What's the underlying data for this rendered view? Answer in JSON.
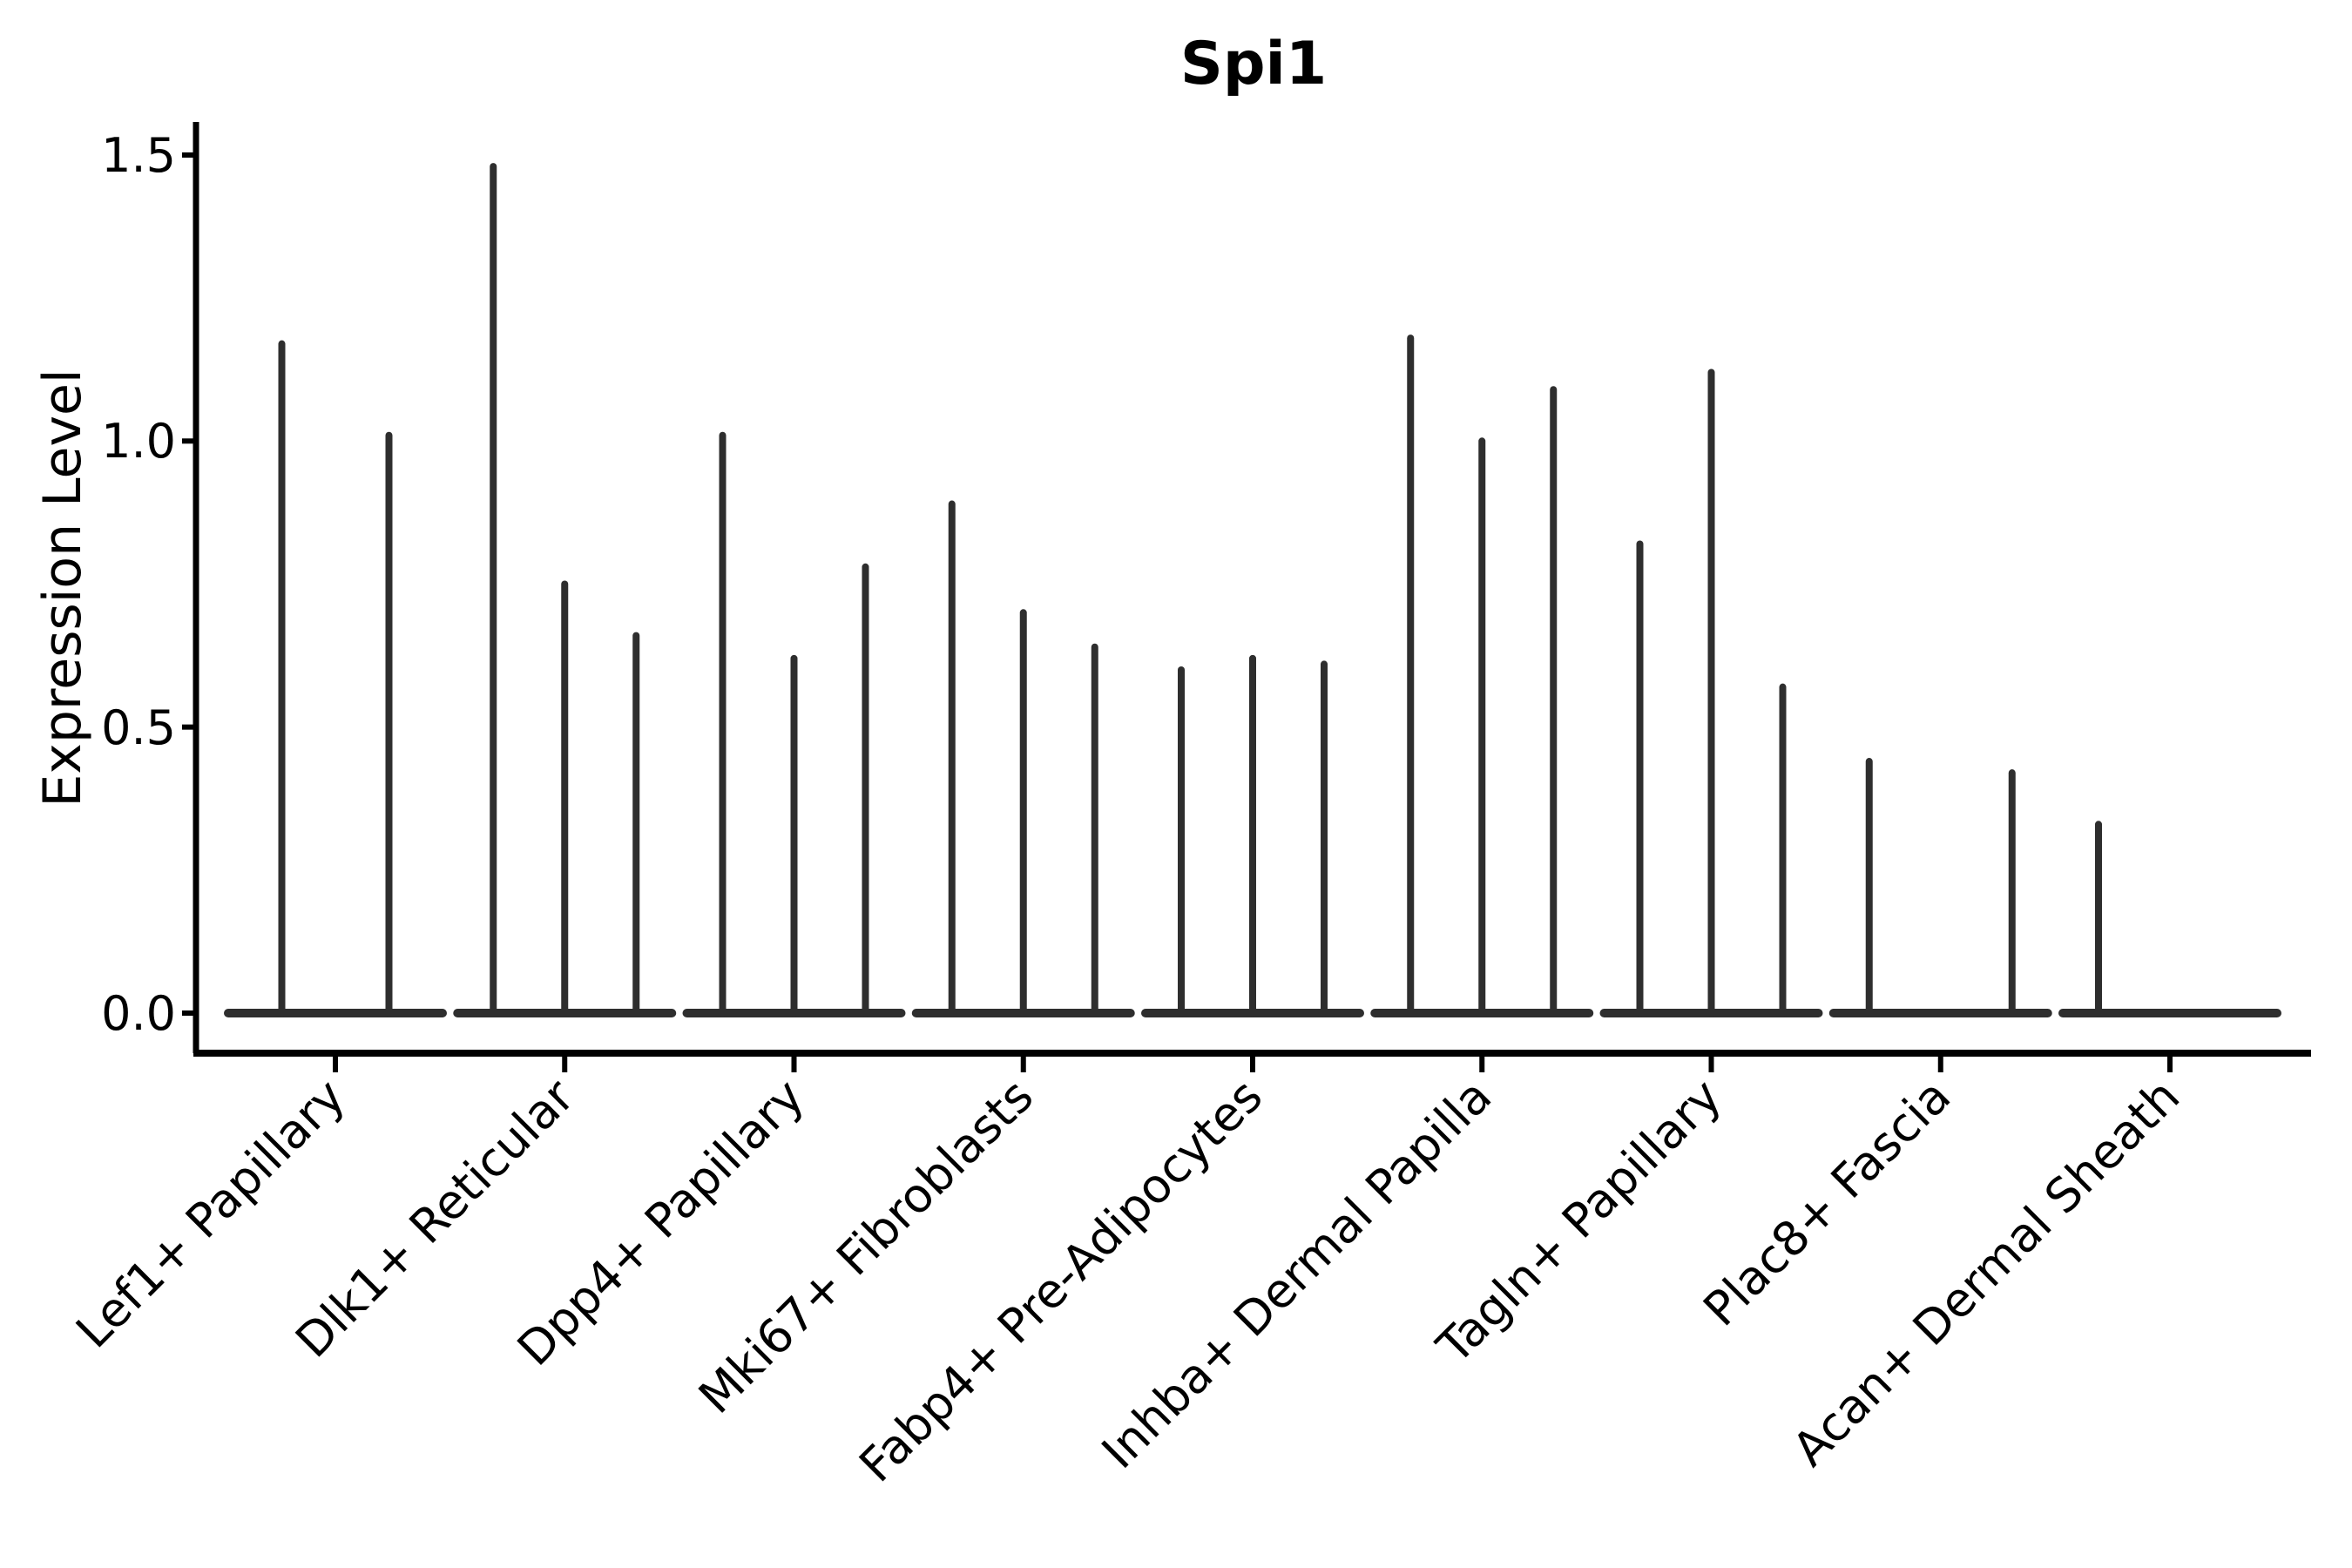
{
  "chart_data": {
    "type": "violin",
    "title": "Spi1",
    "xlabel": "",
    "ylabel": "Expression Level",
    "categories": [
      "Lef1+ Papillary",
      "Dlk1+ Reticular",
      "Dpp4+ Papillary",
      "Mki67+ Fibroblasts",
      "Fabp4+ Pre-Adipocytes",
      "Inhba+ Dermal Papilla",
      "Tagln+ Papillary",
      "Plac8+ Fascia",
      "Acan+ Dermal Sheath"
    ],
    "violins_per_category": [
      2,
      3,
      3,
      3,
      3,
      3,
      3,
      3,
      3
    ],
    "peak_expression_per_category": [
      [
        1.17,
        1.01
      ],
      [
        1.48,
        0.75,
        0.66
      ],
      [
        1.01,
        0.62,
        0.78
      ],
      [
        0.89,
        0.7,
        0.64
      ],
      [
        0.6,
        0.62,
        0.61
      ],
      [
        1.18,
        1.0,
        1.09
      ],
      [
        0.82,
        1.12,
        0.57
      ],
      [
        0.44,
        0.0,
        0.42
      ],
      [
        0.33,
        0.0,
        0.0
      ]
    ],
    "violin_shape_note": "each violin is collapsed to a wide flat base at 0 with a thin needle spike up to its peak expression value",
    "yticks": [
      0.0,
      0.5,
      1.0,
      1.5
    ],
    "ytick_labels": [
      "0.0",
      "0.5",
      "1.0",
      "1.5"
    ],
    "ylim": [
      -0.07,
      1.56
    ],
    "grid": false,
    "legend": "none",
    "x_tick_label_rotation_deg": 45,
    "colors": {
      "violin": "#2e2e2e",
      "axis": "#000000",
      "text": "#000000",
      "background": "#ffffff"
    }
  }
}
